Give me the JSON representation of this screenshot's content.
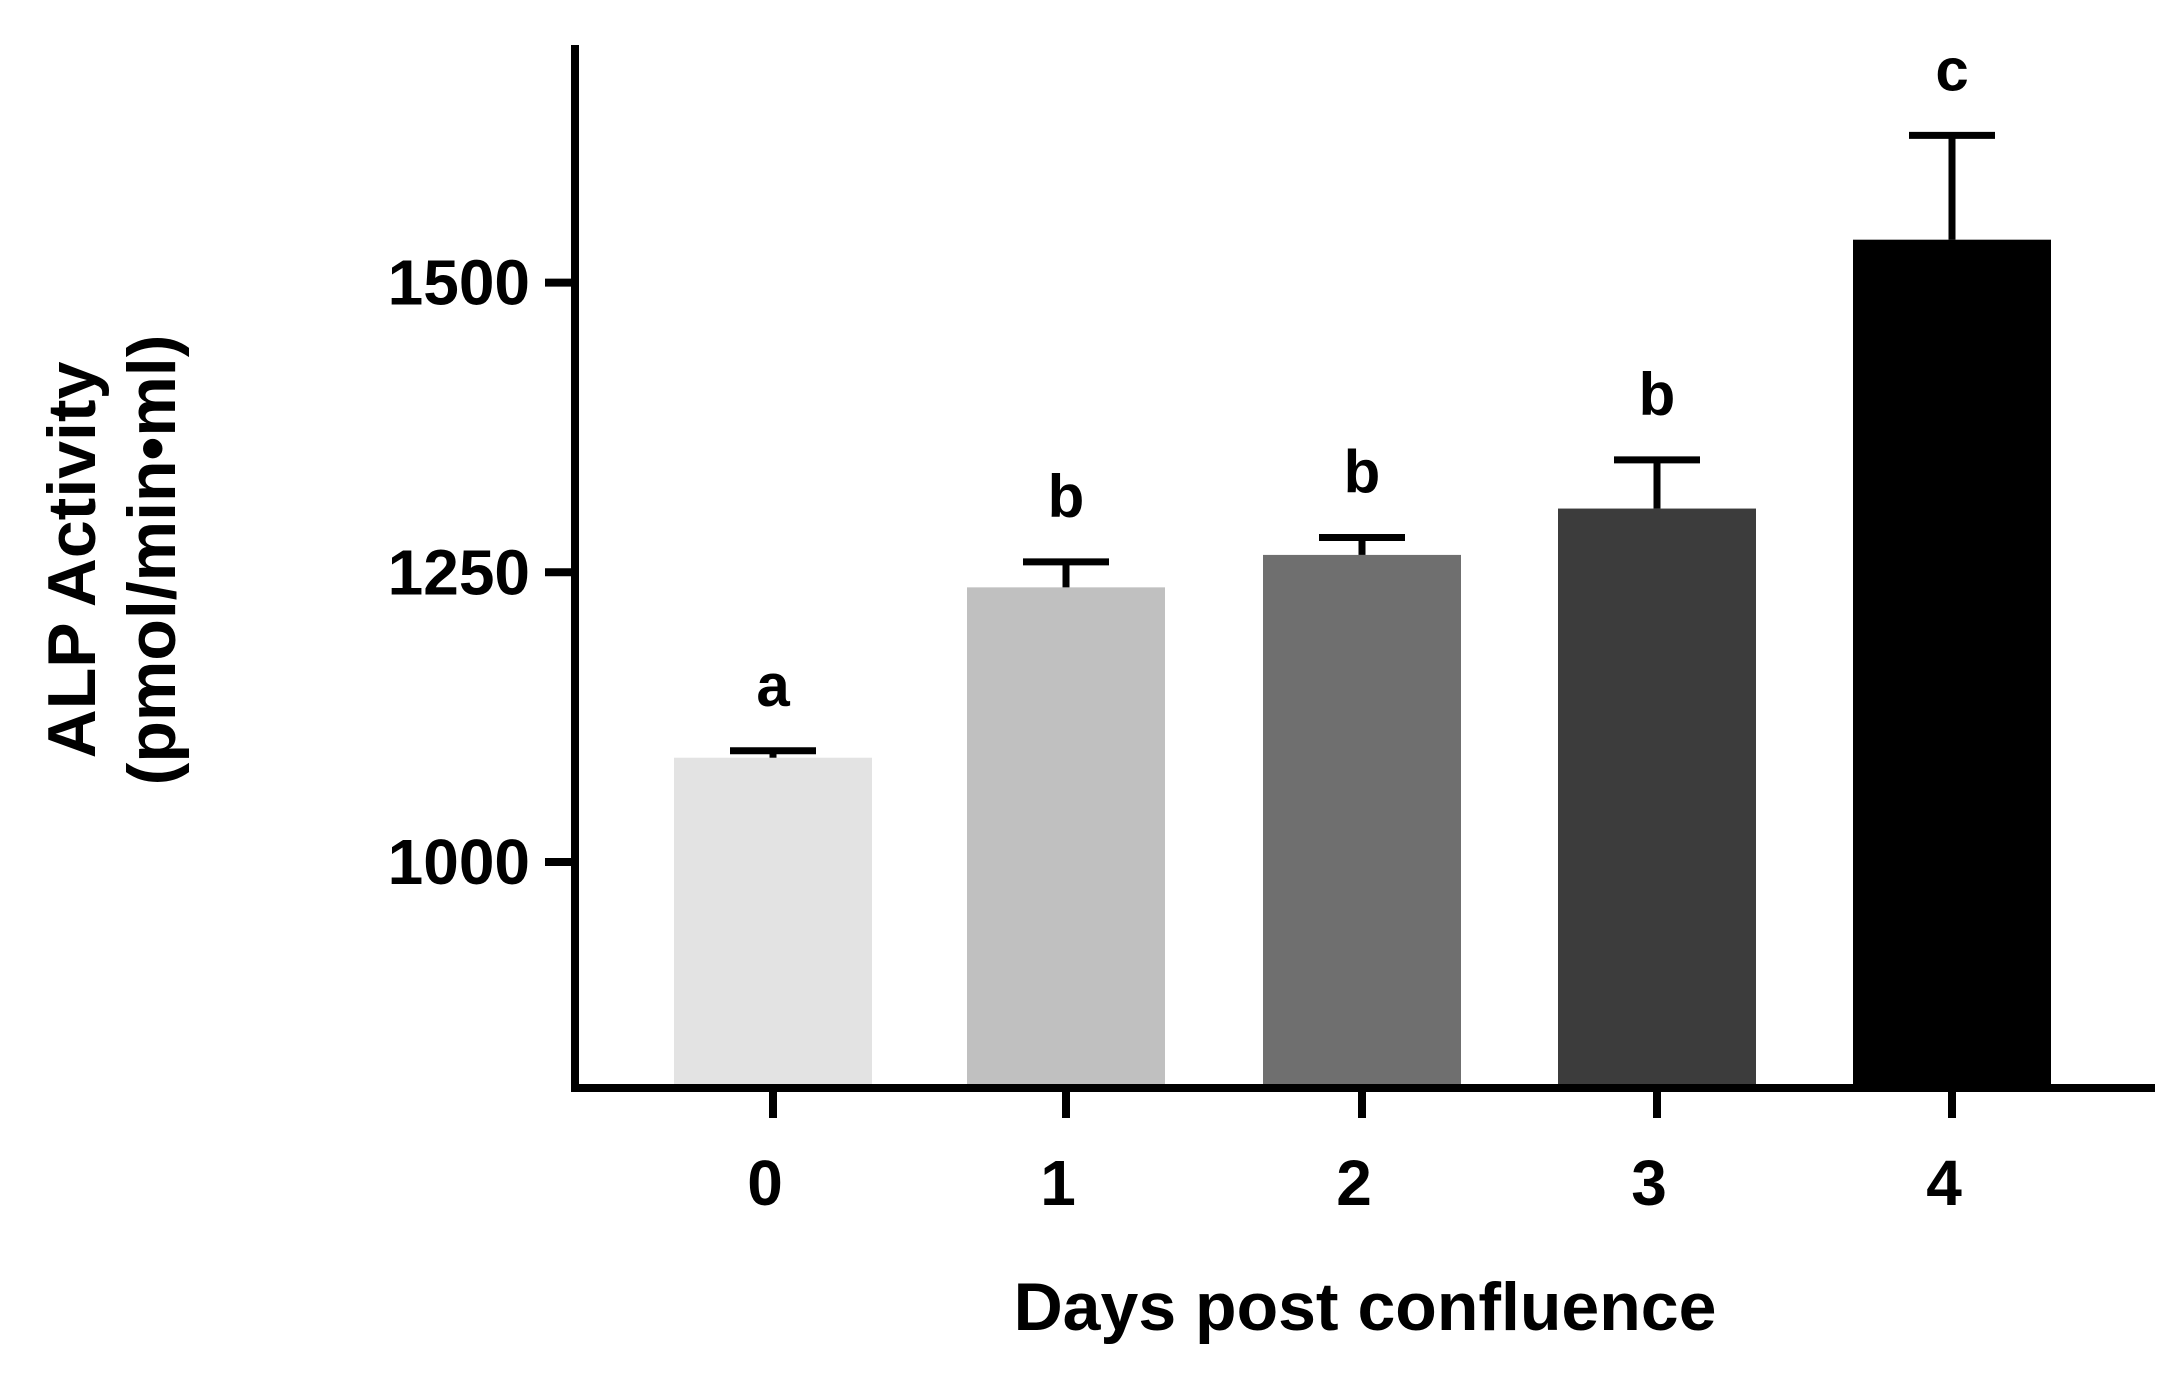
{
  "chart_data": {
    "type": "bar",
    "categories": [
      "0",
      "1",
      "2",
      "3",
      "4"
    ],
    "values": [
      1090,
      1237,
      1265,
      1305,
      1537
    ],
    "errors": [
      6,
      22,
      15,
      42,
      90
    ],
    "significance": [
      "a",
      "b",
      "b",
      "b",
      "c"
    ],
    "colors": [
      "#e3e3e3",
      "#c0c0c0",
      "#6f6f6f",
      "#3c3c3c",
      "#000000"
    ],
    "xlabel": "Days post confluence",
    "ylabel_line1": "ALP Activity",
    "ylabel_line2": "(pmol/min•ml)",
    "yticks": [
      1000,
      1250,
      1500
    ],
    "ylim": [
      805,
      1705
    ],
    "grid": false
  }
}
